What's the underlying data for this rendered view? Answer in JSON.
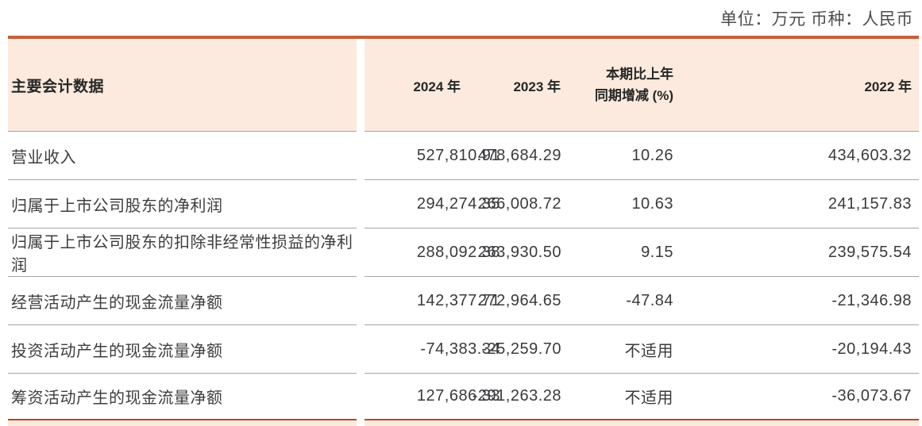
{
  "unit_note": "单位：万元  币种：人民币",
  "table": {
    "header": {
      "label": "主要会计数据",
      "col_2024": "2024 年",
      "col_2023": "2023 年",
      "col_change_line1": "本期比上年",
      "col_change_line2": "同期增减 (%)",
      "col_2022": "2022 年"
    },
    "rows": [
      {
        "label": "营业收入",
        "v2024": "527,810.91",
        "v2023": "478,684.29",
        "change": "10.26",
        "v2022": "434,603.32"
      },
      {
        "label": "归属于上市公司股东的净利润",
        "v2024": "294,274.35",
        "v2023": "266,008.72",
        "change": "10.63",
        "v2022": "241,157.83"
      },
      {
        "label": "归属于上市公司股东的扣除非经常性损益的净利润",
        "v2024": "288,092.38",
        "v2023": "263,930.50",
        "change": "9.15",
        "v2022": "239,575.54"
      },
      {
        "label": "经营活动产生的现金流量净额",
        "v2024": "142,377.71",
        "v2023": "272,964.65",
        "change": "-47.84",
        "v2022": "-21,346.98"
      },
      {
        "label": "投资活动产生的现金流量净额",
        "v2024": "-74,383.34",
        "v2023": "-25,259.70",
        "change": "不适用",
        "v2022": "-20,194.43"
      },
      {
        "label": "筹资活动产生的现金流量净额",
        "v2024": "127,686.33",
        "v2023": "-291,263.28",
        "change": "不适用",
        "v2022": "-36,073.67"
      }
    ]
  },
  "colors": {
    "table_top_border": "#c4603a",
    "next_table_border": "#b84a1e",
    "header_background": "#fbeadd",
    "row_separator": "#a5a5a5",
    "current_year_value": "#c25a33",
    "header_text": "#262626",
    "body_text": "#3a3a3e",
    "unit_text": "#4d4d4d"
  }
}
